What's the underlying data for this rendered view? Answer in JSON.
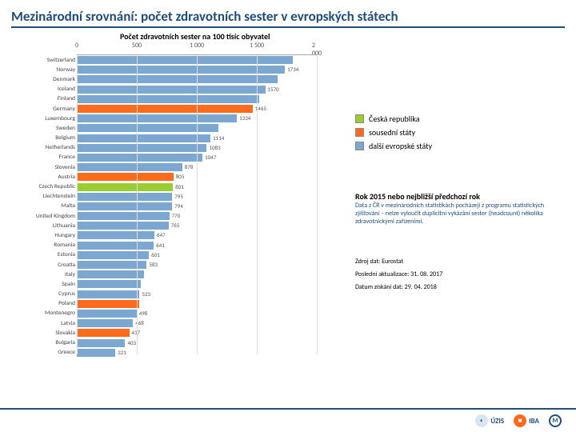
{
  "title": "Mezinárodní srovnání: počet zdravotních sester v evropských státech",
  "subtitle": "Počet zdravotních sester na 100 tisíc obyvatel",
  "chart": {
    "type": "bar-horizontal",
    "xmax": 2000,
    "ticks": [
      0,
      500,
      1000,
      1500,
      2000
    ],
    "tick_labels": [
      "0",
      "500",
      "1 000",
      "1 500",
      "2 000"
    ],
    "bar_colors": {
      "cz": "#9acd32",
      "neighbor": "#ff6b1a",
      "other": "#7ba7d0"
    },
    "rows": [
      {
        "label": "Switzerland",
        "value": 1800,
        "cat": "other",
        "show": false
      },
      {
        "label": "Norway",
        "value": 1734,
        "cat": "other",
        "show": true
      },
      {
        "label": "Denmark",
        "value": 1670,
        "cat": "other",
        "show": false
      },
      {
        "label": "Iceland",
        "value": 1570,
        "cat": "other",
        "show": true
      },
      {
        "label": "Finland",
        "value": 1520,
        "cat": "other",
        "show": false
      },
      {
        "label": "Germany",
        "value": 1465,
        "cat": "neighbor",
        "show": true
      },
      {
        "label": "Luxembourg",
        "value": 1334,
        "cat": "other",
        "show": true
      },
      {
        "label": "Sweden",
        "value": 1180,
        "cat": "other",
        "show": false
      },
      {
        "label": "Belgium",
        "value": 1114,
        "cat": "other",
        "show": true
      },
      {
        "label": "Netherlands",
        "value": 1083,
        "cat": "other",
        "show": true
      },
      {
        "label": "France",
        "value": 1047,
        "cat": "other",
        "show": true
      },
      {
        "label": "Slovenia",
        "value": 878,
        "cat": "other",
        "show": true
      },
      {
        "label": "Austria",
        "value": 805,
        "cat": "neighbor",
        "show": true
      },
      {
        "label": "Czech Republic",
        "value": 801,
        "cat": "cz",
        "show": true
      },
      {
        "label": "Liechtenstein",
        "value": 795,
        "cat": "other",
        "show": true
      },
      {
        "label": "Malta",
        "value": 794,
        "cat": "other",
        "show": true
      },
      {
        "label": "United Kingdom",
        "value": 770,
        "cat": "other",
        "show": true
      },
      {
        "label": "Lithuania",
        "value": 765,
        "cat": "other",
        "show": true
      },
      {
        "label": "Hungary",
        "value": 647,
        "cat": "other",
        "show": true
      },
      {
        "label": "Romania",
        "value": 641,
        "cat": "other",
        "show": true
      },
      {
        "label": "Estonia",
        "value": 601,
        "cat": "other",
        "show": true
      },
      {
        "label": "Croatia",
        "value": 583,
        "cat": "other",
        "show": true
      },
      {
        "label": "Italy",
        "value": 560,
        "cat": "other",
        "show": false
      },
      {
        "label": "Spain",
        "value": 535,
        "cat": "other",
        "show": false
      },
      {
        "label": "Cyprus",
        "value": 523,
        "cat": "other",
        "show": true
      },
      {
        "label": "Poland",
        "value": 520,
        "cat": "neighbor",
        "show": false
      },
      {
        "label": "Montenegro",
        "value": 498,
        "cat": "other",
        "show": true
      },
      {
        "label": "Latvia",
        "value": 468,
        "cat": "other",
        "show": true
      },
      {
        "label": "Slovakia",
        "value": 437,
        "cat": "neighbor",
        "show": true
      },
      {
        "label": "Bulgaria",
        "value": 403,
        "cat": "other",
        "show": true
      },
      {
        "label": "Greece",
        "value": 321,
        "cat": "other",
        "show": true
      }
    ]
  },
  "legend": [
    {
      "color": "#9acd32",
      "label": "Česká republika"
    },
    {
      "color": "#ff6b1a",
      "label": "sousední státy"
    },
    {
      "color": "#7ba7d0",
      "label": "další evropské státy"
    }
  ],
  "note_title": "Rok 2015 nebo nejbližší předchozí rok",
  "note_body": "Data z ČR v mezinárodních statistikách pocházejí z programu statistických zjišťování – nelze vyloučit duplicitní vykázání sester (headcount) několika zdravotnickými zařízeními.",
  "meta": {
    "source": "Zdroj dat: Eurostat",
    "updated": "Poslední aktualizace: 31. 08. 2017",
    "retrieved": "Datum získání dat: 29. 04. 2018"
  },
  "logos": [
    "ÚZIS",
    "IBA",
    "MU"
  ]
}
